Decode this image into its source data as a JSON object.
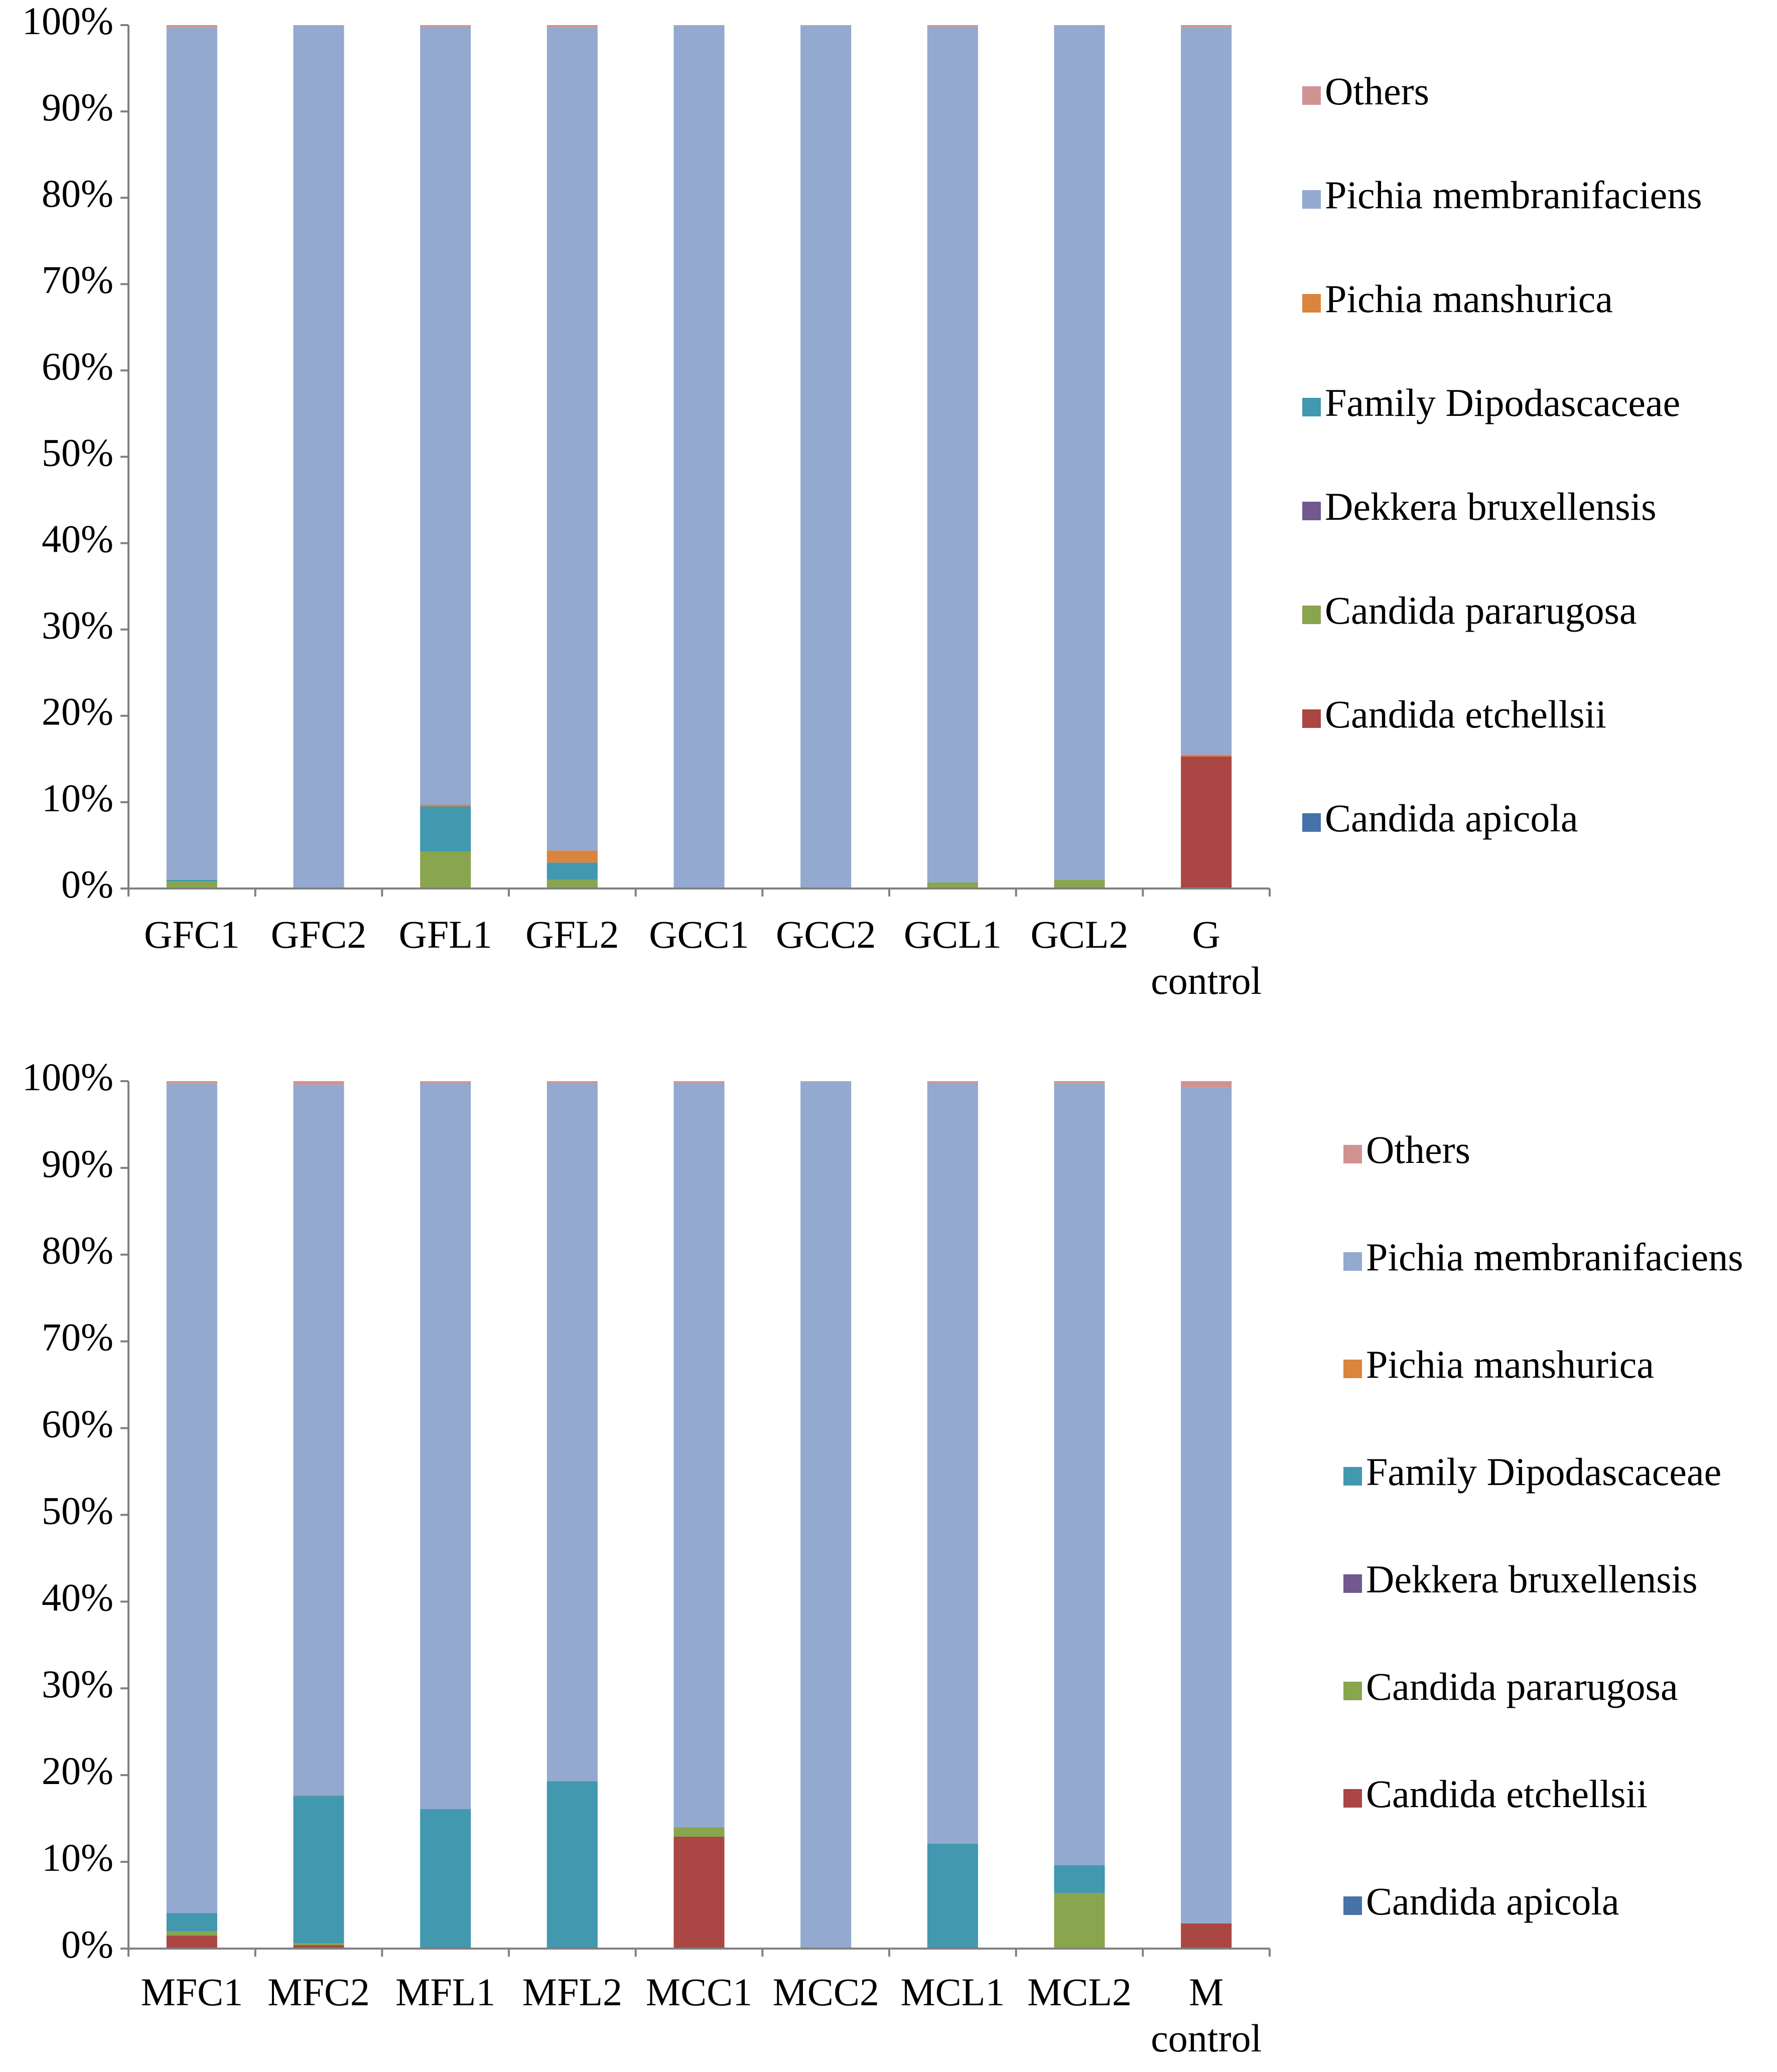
{
  "chart_data": [
    {
      "type": "stacked_bar",
      "legend": "right",
      "grid": false,
      "categories": [
        "GFC1",
        "GFC2",
        "GFL1",
        "GFL2",
        "GCC1",
        "GCC2",
        "GCL1",
        "GCL2",
        "G control"
      ],
      "ylim": [
        0,
        100
      ],
      "yticks": [
        {
          "value": 0,
          "label": "0%"
        },
        {
          "value": 10,
          "label": "10%"
        },
        {
          "value": 20,
          "label": "20%"
        },
        {
          "value": 30,
          "label": "30%"
        },
        {
          "value": 40,
          "label": "40%"
        },
        {
          "value": 50,
          "label": "50%"
        },
        {
          "value": 60,
          "label": "60%"
        },
        {
          "value": 70,
          "label": "70%"
        },
        {
          "value": 80,
          "label": "80%"
        },
        {
          "value": 90,
          "label": "90%"
        },
        {
          "value": 100,
          "label": "100%"
        }
      ],
      "series": [
        {
          "name": "Candida apicola",
          "color": "#4572a7",
          "values": [
            0,
            0,
            0,
            0,
            0,
            0,
            0,
            0,
            0
          ]
        },
        {
          "name": "Candida etchellsii",
          "color": "#aa4643",
          "values": [
            0,
            0,
            0,
            0,
            0,
            0,
            0,
            0,
            15.3
          ]
        },
        {
          "name": "Candida pararugosa",
          "color": "#89a54e",
          "values": [
            0.8,
            0.1,
            4.3,
            1.0,
            0,
            0,
            0.7,
            1.0,
            0
          ]
        },
        {
          "name": "Dekkera bruxellensis",
          "color": "#71588f",
          "values": [
            0,
            0,
            0,
            0,
            0,
            0,
            0,
            0,
            0
          ]
        },
        {
          "name": "Family Dipodascaceae",
          "color": "#4198af",
          "values": [
            0.2,
            0,
            5.2,
            2.0,
            0,
            0,
            0,
            0,
            0
          ]
        },
        {
          "name": "Pichia manshurica",
          "color": "#db843d",
          "values": [
            0,
            0,
            0.2,
            1.4,
            0,
            0,
            0,
            0,
            0.2
          ]
        },
        {
          "name": "Pichia membranifaciens",
          "color": "#93a9cf",
          "values": [
            98.7,
            99.8,
            90.1,
            95.3,
            99.9,
            99.9,
            99.1,
            98.9,
            84.2
          ]
        },
        {
          "name": "Others",
          "color": "#d19392",
          "values": [
            0.3,
            0.1,
            0.2,
            0.3,
            0.1,
            0.1,
            0.2,
            0.1,
            0.3
          ]
        }
      ]
    },
    {
      "type": "stacked_bar",
      "legend": "right",
      "grid": false,
      "categories": [
        "MFC1",
        "MFC2",
        "MFL1",
        "MFL2",
        "MCC1",
        "MCC2",
        "MCL1",
        "MCL2",
        "M control"
      ],
      "ylim": [
        0,
        100
      ],
      "yticks": [
        {
          "value": 0,
          "label": "0%"
        },
        {
          "value": 10,
          "label": "10%"
        },
        {
          "value": 20,
          "label": "20%"
        },
        {
          "value": 30,
          "label": "30%"
        },
        {
          "value": 40,
          "label": "40%"
        },
        {
          "value": 50,
          "label": "50%"
        },
        {
          "value": 60,
          "label": "60%"
        },
        {
          "value": 70,
          "label": "70%"
        },
        {
          "value": 80,
          "label": "80%"
        },
        {
          "value": 90,
          "label": "90%"
        },
        {
          "value": 100,
          "label": "100%"
        }
      ],
      "series": [
        {
          "name": "Candida apicola",
          "color": "#4572a7",
          "values": [
            0,
            0,
            0,
            0,
            0,
            0,
            0,
            0,
            0
          ]
        },
        {
          "name": "Candida etchellsii",
          "color": "#aa4643",
          "values": [
            1.5,
            0.4,
            0,
            0,
            12.9,
            0,
            0,
            0,
            2.9
          ]
        },
        {
          "name": "Candida pararugosa",
          "color": "#89a54e",
          "values": [
            0.5,
            0.2,
            0,
            0,
            1.1,
            0,
            0,
            6.4,
            0
          ]
        },
        {
          "name": "Dekkera bruxellensis",
          "color": "#71588f",
          "values": [
            0,
            0,
            0,
            0,
            0,
            0,
            0,
            0,
            0
          ]
        },
        {
          "name": "Family Dipodascaceae",
          "color": "#4198af",
          "values": [
            2.1,
            17.0,
            16.1,
            19.3,
            0,
            0,
            12.1,
            3.2,
            0
          ]
        },
        {
          "name": "Pichia manshurica",
          "color": "#db843d",
          "values": [
            0,
            0.1,
            0,
            0,
            0,
            0,
            0,
            0,
            0
          ]
        },
        {
          "name": "Pichia membranifaciens",
          "color": "#93a9cf",
          "values": [
            95.6,
            81.9,
            83.7,
            80.5,
            85.8,
            99.9,
            87.7,
            90.1,
            96.4
          ]
        },
        {
          "name": "Others",
          "color": "#d19392",
          "values": [
            0.3,
            0.4,
            0.2,
            0.2,
            0.2,
            0.1,
            0.2,
            0.3,
            0.7
          ]
        }
      ]
    }
  ]
}
